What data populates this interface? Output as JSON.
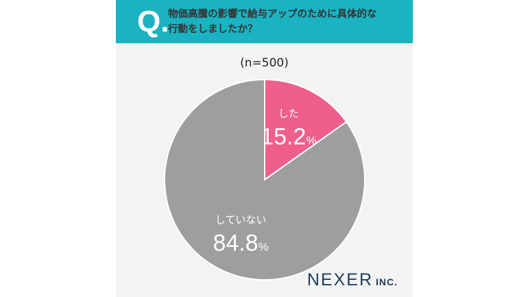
{
  "header": {
    "q_mark": "Q.",
    "question_line1": "物価高騰の影響で給与アップのために具体的な",
    "question_line2": "行動をしましたか？"
  },
  "sample_size": "(n=500)",
  "chart_data": {
    "type": "pie",
    "slices": [
      {
        "label": "した",
        "value": 15.2,
        "display": "15.2",
        "unit": "%",
        "color": "#ef5f8c"
      },
      {
        "label": "していない",
        "value": 84.8,
        "display": "84.8",
        "unit": "%",
        "color": "#9e9e9e"
      }
    ]
  },
  "logo": {
    "main": "NEXER",
    "suffix": "INC."
  }
}
